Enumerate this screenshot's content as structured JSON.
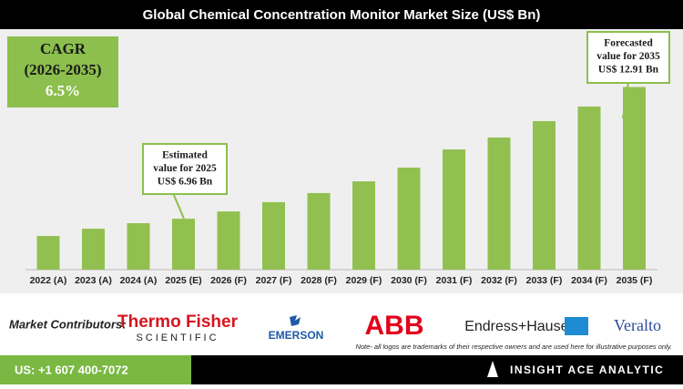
{
  "chart_data": {
    "type": "bar",
    "title": "Global Chemical Concentration Monitor Market Size (US$ Bn)",
    "categories": [
      "2022 (A)",
      "2023 (A)",
      "2024 (A)",
      "2025 (E)",
      "2026 (F)",
      "2027 (F)",
      "2028 (F)",
      "2029 (F)",
      "2030 (F)",
      "2031 (F)",
      "2032 (F)",
      "2033 (F)",
      "2034 (F)",
      "2035 (F)"
    ],
    "values": [
      6.18,
      6.51,
      6.76,
      6.96,
      7.29,
      7.71,
      8.12,
      8.65,
      9.27,
      10.09,
      10.63,
      11.37,
      12.03,
      12.91
    ],
    "color": "#92c050",
    "ylim": [
      4.66,
      15.36
    ],
    "cagr": {
      "title": "CAGR",
      "period": "(2026-2035)",
      "value": "6.5%"
    },
    "annotations": [
      {
        "lines": [
          "Estimated",
          "value for 2025",
          "US$ 6.96 Bn"
        ]
      },
      {
        "lines": [
          "Forecasted",
          "value for 2035",
          "US$ 12.91 Bn"
        ]
      }
    ]
  },
  "contributors": {
    "label": "Market Contributors:",
    "logos": [
      "Thermo Fisher",
      "SCIENTIFIC",
      "EMERSON",
      "ABB",
      "Endress+Hauser",
      "Veralto"
    ],
    "note": "Note- all logos are trademarks of their respective owners and are used here for illustrative purposes only."
  },
  "footer": {
    "phone": "US: +1 607 400-7072",
    "brand": "INSIGHT ACE ANALYTIC"
  }
}
